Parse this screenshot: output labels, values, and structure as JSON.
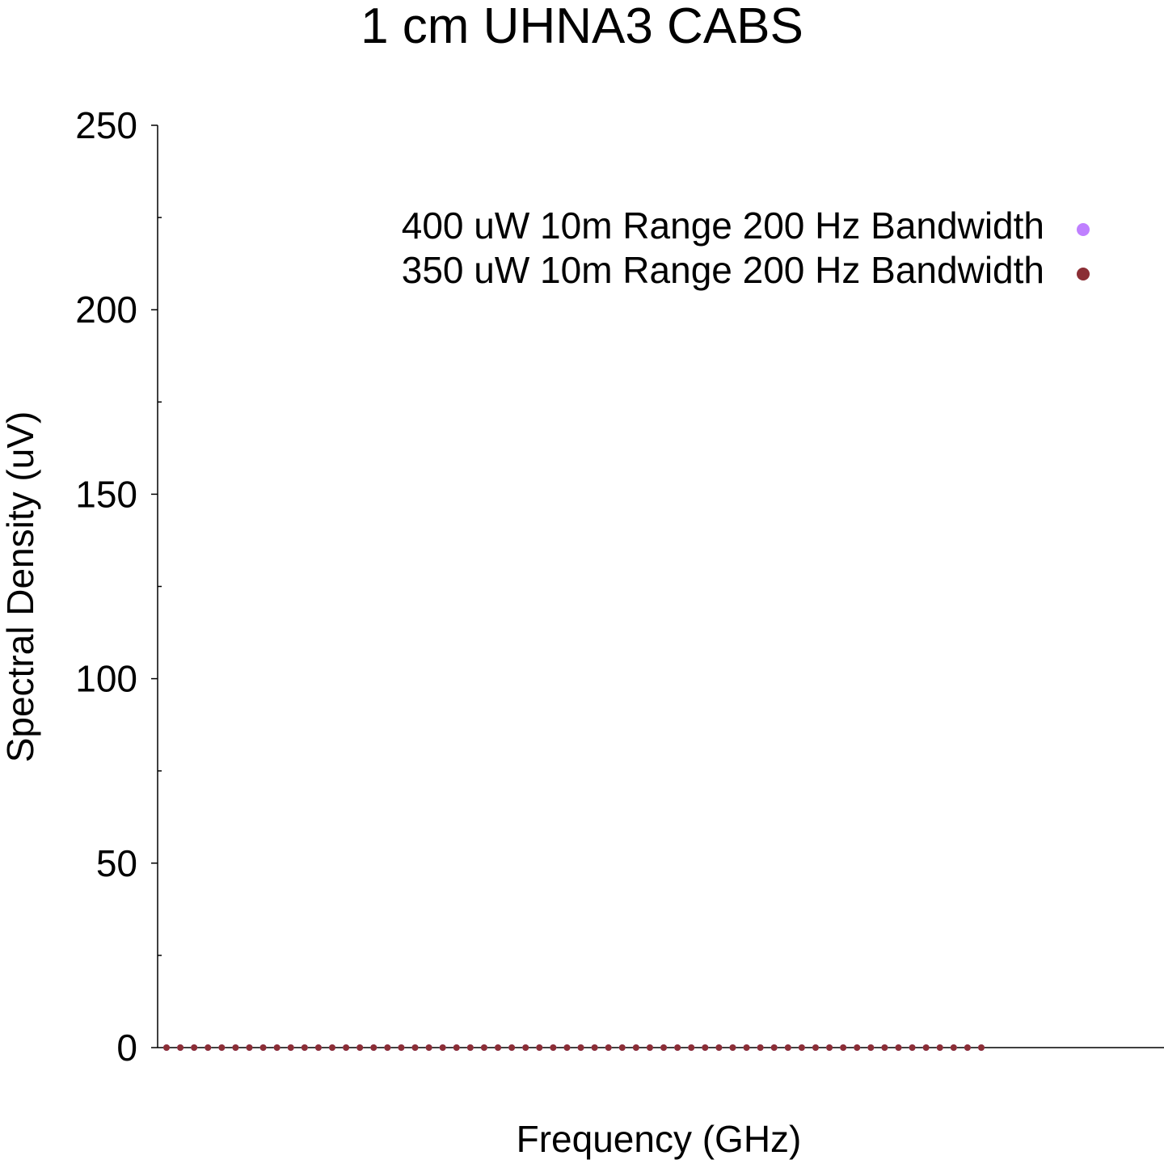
{
  "chart_data": {
    "type": "scatter",
    "title": "1 cm UHNA3 CABS",
    "xlabel": "Frequency (GHz)",
    "ylabel": "Spectral Density (uV)",
    "ylim": [
      0,
      250
    ],
    "y_ticks": [
      {
        "value": 0,
        "label": "0"
      },
      {
        "value": 50,
        "label": "50"
      },
      {
        "value": 100,
        "label": "100"
      },
      {
        "value": 150,
        "label": "150"
      },
      {
        "value": 200,
        "label": "200"
      },
      {
        "value": 250,
        "label": "250"
      }
    ],
    "y_minor_ticks": [
      25,
      75,
      125,
      175,
      225
    ],
    "x_tick_labels_shown": false,
    "grid": false,
    "legend_position": "top-right",
    "series": [
      {
        "name": "400 uW 10m Range 200 Hz Bandwidth",
        "color": "#bf80ff",
        "marker": "circle",
        "values": [
          0,
          0,
          0,
          0,
          0,
          0,
          0,
          0,
          0,
          0,
          0,
          0,
          0,
          0,
          0,
          0,
          0,
          0,
          0,
          0,
          0,
          0,
          0,
          0,
          0,
          0,
          0,
          0,
          0,
          0,
          0,
          0,
          0,
          0,
          0,
          0,
          0,
          0,
          0,
          0,
          0,
          0,
          0,
          0,
          0,
          0,
          0,
          0,
          0,
          0,
          0,
          0,
          0,
          0,
          0,
          0,
          0,
          0,
          0,
          0
        ]
      },
      {
        "name": "350 uW 10m Range 200 Hz Bandwidth",
        "color": "#8b2e35",
        "marker": "circle",
        "values": [
          0,
          0,
          0,
          0,
          0,
          0,
          0,
          0,
          0,
          0,
          0,
          0,
          0,
          0,
          0,
          0,
          0,
          0,
          0,
          0,
          0,
          0,
          0,
          0,
          0,
          0,
          0,
          0,
          0,
          0,
          0,
          0,
          0,
          0,
          0,
          0,
          0,
          0,
          0,
          0,
          0,
          0,
          0,
          0,
          0,
          0,
          0,
          0,
          0,
          0,
          0,
          0,
          0,
          0,
          0,
          0,
          0,
          0,
          0,
          0
        ]
      }
    ]
  }
}
